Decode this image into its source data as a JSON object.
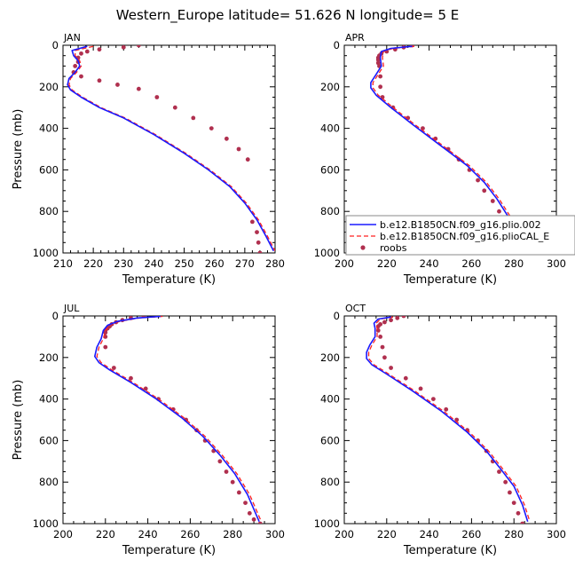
{
  "suptitle": "Western_Europe  latitude= 51.626 N longitude= 5 E",
  "colors": {
    "model1": "#1a1aff",
    "model2": "#ff2222",
    "roobs": "#b0304f"
  },
  "legend": {
    "placement": "bottom-right of APR panel",
    "entries": [
      {
        "label": "b.e12.B1850CN.f09_g16.plio.002",
        "style": "solid-line",
        "color": "#1a1aff"
      },
      {
        "label": "b.e12.B1850CN.f09_g16.plioCAL_E",
        "style": "dashed-line",
        "color": "#ff2222"
      },
      {
        "label": "roobs",
        "style": "dot",
        "color": "#b0304f"
      }
    ]
  },
  "chart_data": [
    {
      "type": "line",
      "title": "JAN",
      "xlabel": "Temperature (K)",
      "ylabel": "Pressure (mb)",
      "xlim": [
        210,
        280
      ],
      "ylim": [
        1000,
        0
      ],
      "y_inverted": true,
      "xticks": [
        210,
        220,
        230,
        240,
        250,
        260,
        270,
        280
      ],
      "yticks": [
        0,
        200,
        400,
        600,
        800,
        1000
      ],
      "series": [
        {
          "name": "b.e12.B1850CN.f09_g16.plio.002",
          "x": [
            218,
            213,
            213.5,
            215,
            215.5,
            214,
            212,
            211.5,
            212.5,
            216,
            222,
            230,
            240,
            250,
            258,
            265,
            270,
            274,
            277,
            279.5
          ],
          "y": [
            5,
            25,
            50,
            75,
            100,
            130,
            160,
            190,
            215,
            250,
            300,
            350,
            430,
            520,
            600,
            680,
            760,
            840,
            920,
            990
          ]
        },
        {
          "name": "b.e12.B1850CN.f09_g16.plioCAL_E",
          "x": [
            220,
            214,
            214,
            215.5,
            216,
            214.5,
            212.5,
            212,
            213,
            216.5,
            222.5,
            230.5,
            240.5,
            250.5,
            258.5,
            265.5,
            270.5,
            274.5,
            277.5,
            280
          ],
          "y": [
            5,
            25,
            50,
            75,
            100,
            130,
            160,
            190,
            215,
            250,
            300,
            350,
            430,
            520,
            600,
            680,
            760,
            840,
            920,
            990
          ]
        },
        {
          "name": "roobs",
          "x": [
            235,
            230,
            222,
            218,
            216,
            215,
            215,
            214,
            213.5,
            216,
            222,
            228,
            235,
            241,
            247,
            253,
            259,
            264,
            268,
            271,
            272.5,
            274,
            274.5,
            275
          ],
          "y": [
            0,
            10,
            20,
            30,
            40,
            60,
            80,
            100,
            130,
            150,
            170,
            190,
            210,
            250,
            300,
            350,
            400,
            450,
            500,
            550,
            850,
            900,
            950,
            1000
          ]
        }
      ]
    },
    {
      "type": "line",
      "title": "APR",
      "xlabel": "Temperature (K)",
      "ylabel": "",
      "xlim": [
        200,
        300
      ],
      "ylim": [
        1000,
        0
      ],
      "y_inverted": true,
      "xticks": [
        200,
        220,
        240,
        260,
        280,
        300
      ],
      "yticks": [
        0,
        200,
        400,
        600,
        800,
        1000
      ],
      "series": [
        {
          "name": "b.e12.B1850CN.f09_g16.plio.002",
          "x": [
            232,
            222,
            217.5,
            217,
            217.5,
            215,
            212.5,
            212.5,
            215,
            222,
            232,
            245,
            258,
            266,
            272,
            277,
            282,
            285
          ],
          "y": [
            5,
            15,
            30,
            60,
            100,
            140,
            180,
            205,
            240,
            300,
            380,
            480,
            580,
            660,
            740,
            820,
            920,
            990
          ]
        },
        {
          "name": "b.e12.B1850CN.f09_g16.plioCAL_E",
          "x": [
            233,
            223,
            218.5,
            218,
            218.5,
            216,
            213.5,
            213.5,
            216,
            223,
            233,
            246,
            259,
            267,
            273,
            278,
            283,
            286
          ],
          "y": [
            5,
            15,
            30,
            60,
            100,
            140,
            180,
            205,
            240,
            300,
            380,
            480,
            580,
            660,
            740,
            820,
            920,
            990
          ]
        },
        {
          "name": "roobs",
          "x": [
            232,
            228,
            224,
            220,
            217.5,
            216.5,
            216,
            216,
            216,
            216.5,
            217,
            217,
            218,
            223,
            230,
            237,
            243,
            249,
            254,
            259,
            263,
            266,
            270,
            273,
            276,
            279,
            282,
            284
          ],
          "y": [
            0,
            10,
            20,
            30,
            40,
            50,
            60,
            70,
            85,
            100,
            150,
            200,
            250,
            300,
            350,
            400,
            450,
            500,
            550,
            600,
            650,
            700,
            750,
            800,
            850,
            900,
            950,
            1000
          ]
        }
      ]
    },
    {
      "type": "line",
      "title": "JUL",
      "xlabel": "Temperature (K)",
      "ylabel": "Pressure (mb)",
      "xlim": [
        200,
        300
      ],
      "ylim": [
        1000,
        0
      ],
      "y_inverted": true,
      "xticks": [
        200,
        220,
        240,
        260,
        280,
        300
      ],
      "yticks": [
        0,
        200,
        400,
        600,
        800,
        1000
      ],
      "series": [
        {
          "name": "b.e12.B1850CN.f09_g16.plio.002",
          "x": [
            246,
            235,
            226,
            221,
            219,
            218,
            216,
            215,
            217,
            222,
            232,
            244,
            256,
            266,
            274,
            281,
            287,
            292.5
          ],
          "y": [
            2,
            10,
            25,
            45,
            70,
            110,
            150,
            195,
            225,
            260,
            320,
            400,
            490,
            580,
            670,
            760,
            860,
            990
          ]
        },
        {
          "name": "b.e12.B1850CN.f09_g16.plioCAL_E",
          "x": [
            247,
            236,
            227,
            222,
            220,
            219,
            217,
            216,
            218,
            223,
            233,
            245,
            257,
            267,
            275,
            282,
            288,
            293.5
          ],
          "y": [
            2,
            10,
            25,
            45,
            70,
            110,
            150,
            195,
            225,
            260,
            320,
            400,
            490,
            580,
            670,
            760,
            860,
            990
          ]
        },
        {
          "name": "roobs",
          "x": [
            238,
            232,
            228,
            225,
            223,
            222,
            221,
            220,
            220,
            220,
            220,
            224,
            232,
            239,
            245,
            252,
            258,
            263,
            267,
            271,
            274,
            277,
            280,
            283,
            286,
            288,
            290,
            293
          ],
          "y": [
            0,
            10,
            20,
            30,
            40,
            50,
            60,
            70,
            80,
            100,
            150,
            250,
            300,
            350,
            400,
            450,
            500,
            550,
            600,
            650,
            700,
            750,
            800,
            850,
            900,
            950,
            980,
            1000
          ]
        }
      ]
    },
    {
      "type": "line",
      "title": "OCT",
      "xlabel": "Temperature (K)",
      "ylabel": "",
      "xlim": [
        200,
        300
      ],
      "ylim": [
        1000,
        0
      ],
      "y_inverted": true,
      "xticks": [
        200,
        220,
        240,
        260,
        280,
        300
      ],
      "yticks": [
        0,
        200,
        400,
        600,
        800,
        1000
      ],
      "series": [
        {
          "name": "b.e12.B1850CN.f09_g16.plio.002",
          "x": [
            222,
            216,
            214,
            214.5,
            214.5,
            212,
            210.5,
            210.5,
            213,
            220,
            232,
            246,
            258,
            267,
            274,
            280,
            284,
            286.5
          ],
          "y": [
            5,
            15,
            35,
            60,
            100,
            140,
            175,
            205,
            235,
            280,
            360,
            460,
            560,
            650,
            740,
            820,
            910,
            990
          ]
        },
        {
          "name": "b.e12.B1850CN.f09_g16.plioCAL_E",
          "x": [
            223,
            217,
            215,
            215.5,
            215.5,
            213,
            211.5,
            211.5,
            214,
            221,
            233,
            247,
            259,
            268,
            275,
            281,
            285,
            287.5
          ],
          "y": [
            5,
            15,
            35,
            60,
            100,
            140,
            175,
            205,
            235,
            280,
            360,
            460,
            560,
            650,
            740,
            820,
            910,
            990
          ]
        },
        {
          "name": "roobs",
          "x": [
            228,
            225,
            222,
            219,
            217,
            216,
            216,
            217,
            218,
            219,
            222,
            229,
            236,
            242,
            248,
            253,
            258,
            263,
            267,
            270,
            273,
            276,
            278,
            280,
            282,
            284
          ],
          "y": [
            0,
            10,
            20,
            30,
            40,
            50,
            70,
            100,
            150,
            200,
            250,
            300,
            350,
            400,
            450,
            500,
            550,
            600,
            650,
            700,
            750,
            800,
            850,
            900,
            950,
            1000
          ]
        }
      ]
    }
  ]
}
